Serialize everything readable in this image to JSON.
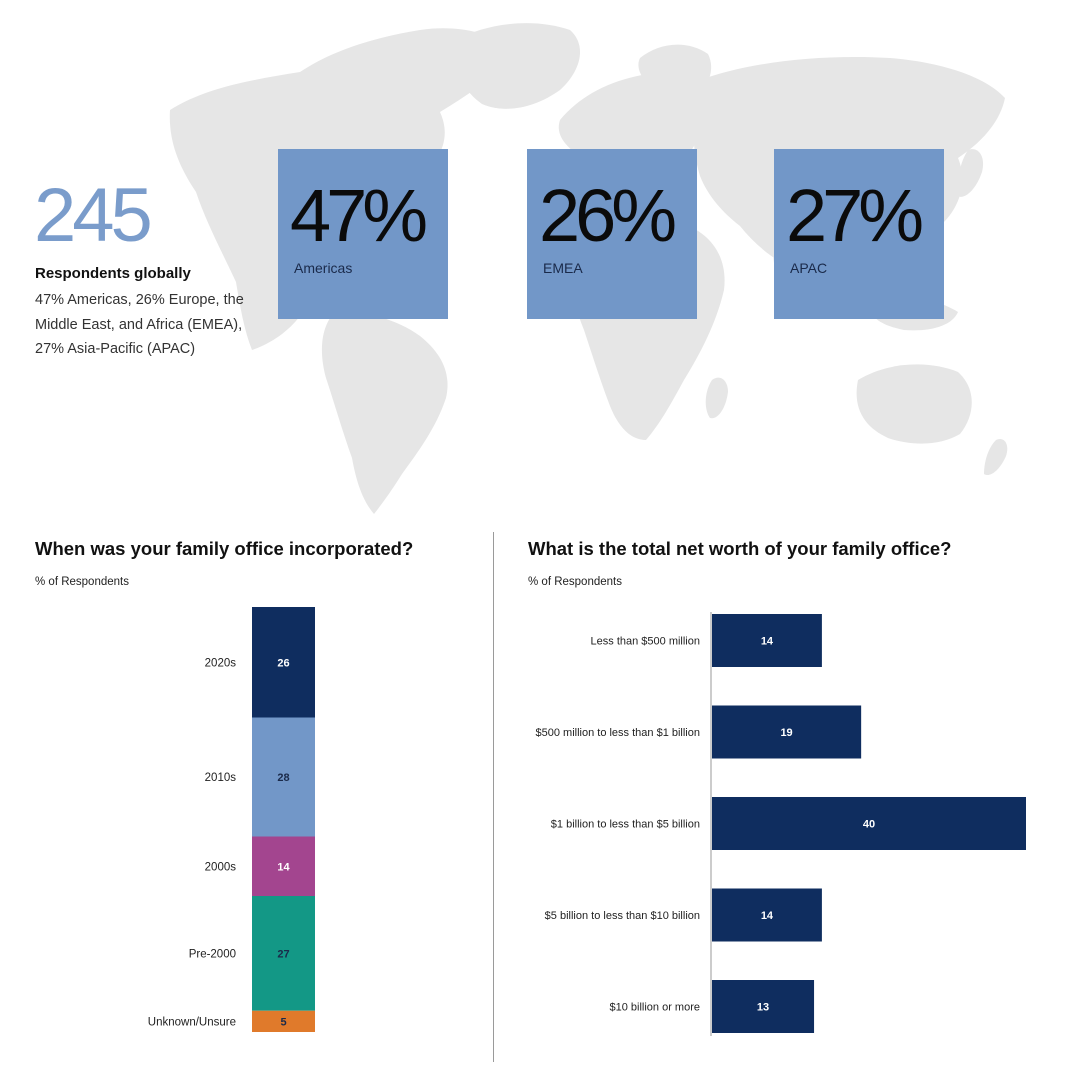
{
  "colors": {
    "map": "#e6e6e6",
    "region_box": "#7297c8",
    "navy": "#0f2d5f",
    "light_blue": "#7297c8",
    "magenta": "#a3458f",
    "teal": "#139886",
    "orange": "#e07a2b"
  },
  "headline": {
    "number": "245",
    "title": "Respondents globally",
    "description": "47% Americas, 26% Europe, the Middle East, and Africa (EMEA), 27% Asia-Pacific (APAC)"
  },
  "regions": [
    {
      "percent": "47%",
      "name": "Americas"
    },
    {
      "percent": "26%",
      "name": "EMEA"
    },
    {
      "percent": "27%",
      "name": "APAC"
    }
  ],
  "chart_data": [
    {
      "type": "bar",
      "stacked": true,
      "title": "When was your family office incorporated?",
      "ylabel": "% of Respondents",
      "categories": [
        "2020s",
        "2010s",
        "2000s",
        "Pre-2000",
        "Unknown/Unsure"
      ],
      "values": [
        26,
        28,
        14,
        27,
        5
      ],
      "colors": [
        "#0f2d5f",
        "#7297c8",
        "#a3458f",
        "#139886",
        "#e07a2b"
      ],
      "label_colors": [
        "#ffffff",
        "#1a2a4a",
        "#ffffff",
        "#1a2a4a",
        "#1a2a4a"
      ],
      "total": 100
    },
    {
      "type": "bar",
      "orientation": "horizontal",
      "title": "What is the total net worth of your family office?",
      "ylabel": "% of Respondents",
      "categories": [
        "Less than $500 million",
        "$500 million to less than $1 billion",
        "$1 billion to less than $5 billion",
        "$5 billion to less than $10 billion",
        "$10 billion or more"
      ],
      "values": [
        14,
        19,
        40,
        14,
        13
      ],
      "color": "#0f2d5f",
      "xlim": [
        0,
        40
      ]
    }
  ]
}
